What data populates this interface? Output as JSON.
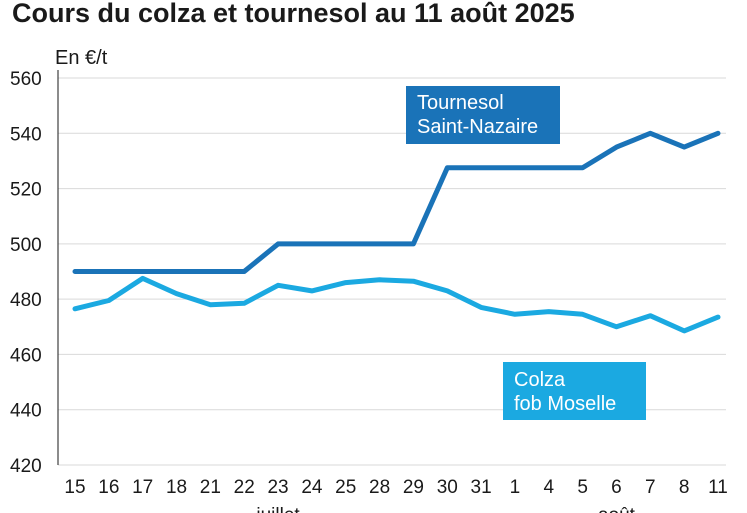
{
  "chart_data": {
    "type": "line",
    "title": "Cours du colza et tournesol au 11 août 2025",
    "ylabel": "En €/t",
    "ylim": [
      420,
      560
    ],
    "yticks": [
      420,
      440,
      460,
      480,
      500,
      520,
      540,
      560
    ],
    "grid": true,
    "categories": [
      "15",
      "16",
      "17",
      "18",
      "21",
      "22",
      "23",
      "24",
      "25",
      "28",
      "29",
      "30",
      "31",
      "1",
      "4",
      "5",
      "6",
      "7",
      "8",
      "11"
    ],
    "month_labels": [
      {
        "label": "juillet",
        "category": "23"
      },
      {
        "label": "août",
        "category": "6"
      }
    ],
    "series": [
      {
        "name": "Tournesol\nSaint-Nazaire",
        "color": "#1a73b8",
        "values": [
          490,
          490,
          490,
          490,
          490,
          490,
          500,
          500,
          500,
          500,
          500,
          527.5,
          527.5,
          527.5,
          527.5,
          527.5,
          535,
          540,
          535,
          540
        ]
      },
      {
        "name": "Colza\nfob Moselle",
        "color": "#1ba9e1",
        "values": [
          476.5,
          479.5,
          487.5,
          482,
          478,
          478.5,
          485,
          483,
          486,
          487,
          486.5,
          483,
          477,
          474.5,
          475.5,
          474.5,
          470,
          474,
          468.5,
          473.5
        ]
      }
    ],
    "legend_placement": "inline"
  }
}
